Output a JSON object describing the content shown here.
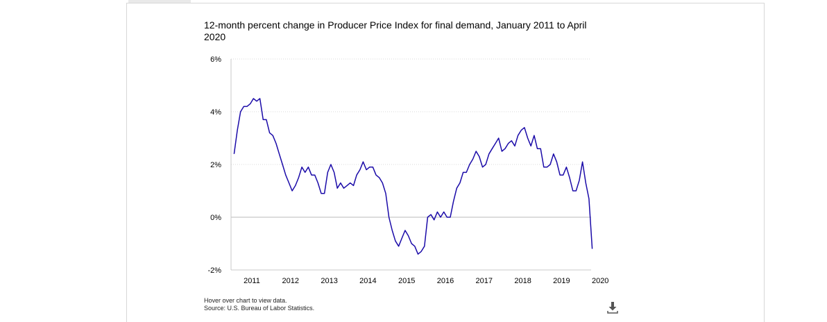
{
  "chart_data": {
    "type": "line",
    "title": "12-month percent change in Producer Price Index for final demand, January 2011 to April 2020",
    "xlabel": "",
    "ylabel": "",
    "ylim": [
      -2,
      6
    ],
    "y_ticks": [
      -2,
      0,
      2,
      4,
      6
    ],
    "y_tick_labels": [
      "-2%",
      "0%",
      "2%",
      "4%",
      "6%"
    ],
    "x_ticks": [
      2011,
      2012,
      2013,
      2014,
      2015,
      2016,
      2017,
      2018,
      2019,
      2020
    ],
    "x_tick_labels": [
      "2011",
      "2012",
      "2013",
      "2014",
      "2015",
      "2016",
      "2017",
      "2018",
      "2019",
      "2020"
    ],
    "grid": true,
    "color": "#1a0aa8",
    "series": [
      {
        "values": [
          [
            "2011-01",
            2.4
          ],
          [
            "2011-02",
            3.3
          ],
          [
            "2011-03",
            4.0
          ],
          [
            "2011-04",
            4.2
          ],
          [
            "2011-05",
            4.2
          ],
          [
            "2011-06",
            4.3
          ],
          [
            "2011-07",
            4.5
          ],
          [
            "2011-08",
            4.4
          ],
          [
            "2011-09",
            4.5
          ],
          [
            "2011-10",
            3.7
          ],
          [
            "2011-11",
            3.7
          ],
          [
            "2011-12",
            3.2
          ],
          [
            "2012-01",
            3.1
          ],
          [
            "2012-02",
            2.8
          ],
          [
            "2012-03",
            2.4
          ],
          [
            "2012-04",
            2.0
          ],
          [
            "2012-05",
            1.6
          ],
          [
            "2012-06",
            1.3
          ],
          [
            "2012-07",
            1.0
          ],
          [
            "2012-08",
            1.2
          ],
          [
            "2012-09",
            1.5
          ],
          [
            "2012-10",
            1.9
          ],
          [
            "2012-11",
            1.7
          ],
          [
            "2012-12",
            1.9
          ],
          [
            "2013-01",
            1.6
          ],
          [
            "2013-02",
            1.6
          ],
          [
            "2013-03",
            1.3
          ],
          [
            "2013-04",
            0.9
          ],
          [
            "2013-05",
            0.9
          ],
          [
            "2013-06",
            1.7
          ],
          [
            "2013-07",
            2.0
          ],
          [
            "2013-08",
            1.7
          ],
          [
            "2013-09",
            1.1
          ],
          [
            "2013-10",
            1.3
          ],
          [
            "2013-11",
            1.1
          ],
          [
            "2013-12",
            1.2
          ],
          [
            "2014-01",
            1.3
          ],
          [
            "2014-02",
            1.2
          ],
          [
            "2014-03",
            1.6
          ],
          [
            "2014-04",
            1.8
          ],
          [
            "2014-05",
            2.1
          ],
          [
            "2014-06",
            1.8
          ],
          [
            "2014-07",
            1.9
          ],
          [
            "2014-08",
            1.9
          ],
          [
            "2014-09",
            1.6
          ],
          [
            "2014-10",
            1.5
          ],
          [
            "2014-11",
            1.3
          ],
          [
            "2014-12",
            0.9
          ],
          [
            "2015-01",
            0.0
          ],
          [
            "2015-02",
            -0.5
          ],
          [
            "2015-03",
            -0.9
          ],
          [
            "2015-04",
            -1.1
          ],
          [
            "2015-05",
            -0.8
          ],
          [
            "2015-06",
            -0.5
          ],
          [
            "2015-07",
            -0.7
          ],
          [
            "2015-08",
            -1.0
          ],
          [
            "2015-09",
            -1.1
          ],
          [
            "2015-10",
            -1.4
          ],
          [
            "2015-11",
            -1.3
          ],
          [
            "2015-12",
            -1.1
          ],
          [
            "2016-01",
            0.0
          ],
          [
            "2016-02",
            0.1
          ],
          [
            "2016-03",
            -0.1
          ],
          [
            "2016-04",
            0.2
          ],
          [
            "2016-05",
            0.0
          ],
          [
            "2016-06",
            0.2
          ],
          [
            "2016-07",
            0.0
          ],
          [
            "2016-08",
            0.0
          ],
          [
            "2016-09",
            0.6
          ],
          [
            "2016-10",
            1.1
          ],
          [
            "2016-11",
            1.3
          ],
          [
            "2016-12",
            1.7
          ],
          [
            "2017-01",
            1.7
          ],
          [
            "2017-02",
            2.0
          ],
          [
            "2017-03",
            2.2
          ],
          [
            "2017-04",
            2.5
          ],
          [
            "2017-05",
            2.3
          ],
          [
            "2017-06",
            1.9
          ],
          [
            "2017-07",
            2.0
          ],
          [
            "2017-08",
            2.4
          ],
          [
            "2017-09",
            2.6
          ],
          [
            "2017-10",
            2.8
          ],
          [
            "2017-11",
            3.0
          ],
          [
            "2017-12",
            2.5
          ],
          [
            "2018-01",
            2.6
          ],
          [
            "2018-02",
            2.8
          ],
          [
            "2018-03",
            2.9
          ],
          [
            "2018-04",
            2.7
          ],
          [
            "2018-05",
            3.1
          ],
          [
            "2018-06",
            3.3
          ],
          [
            "2018-07",
            3.4
          ],
          [
            "2018-08",
            3.0
          ],
          [
            "2018-09",
            2.7
          ],
          [
            "2018-10",
            3.1
          ],
          [
            "2018-11",
            2.6
          ],
          [
            "2018-12",
            2.6
          ],
          [
            "2019-01",
            1.9
          ],
          [
            "2019-02",
            1.9
          ],
          [
            "2019-03",
            2.0
          ],
          [
            "2019-04",
            2.4
          ],
          [
            "2019-05",
            2.1
          ],
          [
            "2019-06",
            1.6
          ],
          [
            "2019-07",
            1.6
          ],
          [
            "2019-08",
            1.9
          ],
          [
            "2019-09",
            1.5
          ],
          [
            "2019-10",
            1.0
          ],
          [
            "2019-11",
            1.0
          ],
          [
            "2019-12",
            1.4
          ],
          [
            "2020-01",
            2.1
          ],
          [
            "2020-02",
            1.3
          ],
          [
            "2020-03",
            0.7
          ],
          [
            "2020-04",
            -1.2
          ]
        ]
      }
    ]
  },
  "notes": {
    "hover_hint": "Hover over chart to view data.",
    "source": "Source: U.S. Bureau of Labor Statistics."
  },
  "icons": {
    "download": "download-icon"
  }
}
